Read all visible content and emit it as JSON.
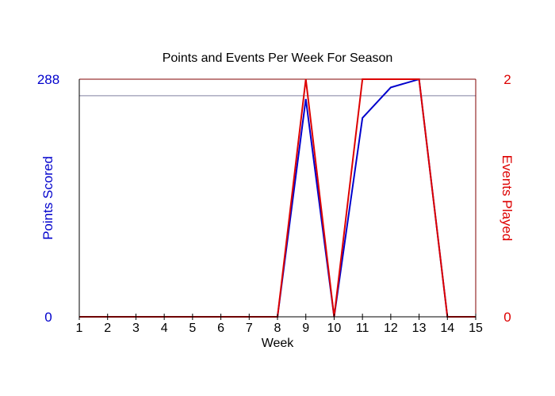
{
  "chart_data": {
    "type": "line",
    "title": "Points and Events Per Week For Season",
    "xlabel": "Week",
    "ylabel_left": "Points Scored",
    "ylabel_right": "Events Played",
    "x": [
      1,
      2,
      3,
      4,
      5,
      6,
      7,
      8,
      9,
      10,
      11,
      12,
      13,
      14,
      15
    ],
    "xlim": [
      1,
      15
    ],
    "ylim_left": [
      0,
      288
    ],
    "ylim_right": [
      0,
      2
    ],
    "y_left_ticks": [
      "0",
      "288"
    ],
    "y_right_ticks": [
      "0",
      "2"
    ],
    "reference_line_left": 268,
    "series": [
      {
        "axis": "left",
        "color": "#0000cc",
        "values": [
          0,
          0,
          0,
          0,
          0,
          0,
          0,
          0,
          264,
          0,
          241,
          278,
          288,
          0,
          0
        ]
      },
      {
        "axis": "right",
        "color": "#dd0000",
        "values": [
          0,
          0,
          0,
          0,
          0,
          0,
          0,
          0,
          2,
          0,
          2,
          2,
          2,
          0,
          0
        ]
      }
    ],
    "colors": {
      "left_axis": "#0000cc",
      "right_axis": "#dd0000",
      "frame": "#800000",
      "reference_line": "#8080a0"
    }
  }
}
